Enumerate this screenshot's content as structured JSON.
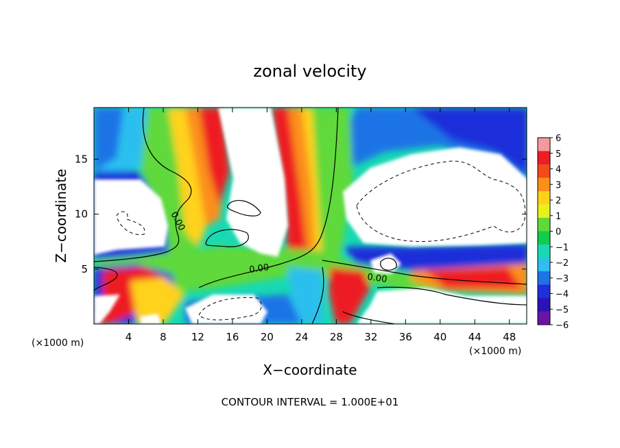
{
  "chart_data": {
    "type": "heatmap",
    "title": "zonal velocity",
    "xlabel": "X−coordinate",
    "ylabel": "Z−coordinate",
    "x_unit_label_left": "(×1000 m)",
    "x_unit_label_right": "(×1000 m)",
    "footer": "CONTOUR INTERVAL = 1.000E+01",
    "xlim": [
      0,
      50
    ],
    "ylim": [
      0,
      19.7
    ],
    "x_ticks": [
      4,
      8,
      12,
      16,
      20,
      24,
      28,
      32,
      36,
      40,
      44,
      48
    ],
    "x_tick_labels": [
      "4",
      "8",
      "12",
      "16",
      "20",
      "24",
      "28",
      "32",
      "36",
      "40",
      "44",
      "48"
    ],
    "y_ticks": [
      5,
      10,
      15
    ],
    "y_tick_labels": [
      "5",
      "10",
      "15"
    ],
    "colorbar": {
      "levels": [
        6,
        5,
        4,
        3,
        2,
        1,
        0,
        -1,
        -2,
        -3,
        -4,
        -5,
        -6
      ],
      "labels": [
        "6",
        "5",
        "4",
        "3",
        "2",
        "1",
        "0",
        "−1",
        "−2",
        "−3",
        "−4",
        "−5",
        "−6"
      ],
      "colors": [
        "#f59a9a",
        "#ee1c24",
        "#f24a1c",
        "#fb8f1a",
        "#ffd21a",
        "#e7f21a",
        "#5fd93a",
        "#12cc4c",
        "#18d9b3",
        "#2cbfef",
        "#1f73e6",
        "#1f2fd9",
        "#2a13b8",
        "#6a14a8"
      ]
    },
    "contour_labels": [
      {
        "text": "0.00",
        "x": 18.7,
        "y": 5.0
      },
      {
        "text": "0.00",
        "x": 33.1,
        "y": 4.4
      },
      {
        "text": "0.00",
        "x": 9.9,
        "y": 9.3
      }
    ],
    "description_colors": {
      "saturated_high": "#ffffff",
      "saturated_low": "#ffffff",
      "contour_line": "#000000"
    }
  }
}
